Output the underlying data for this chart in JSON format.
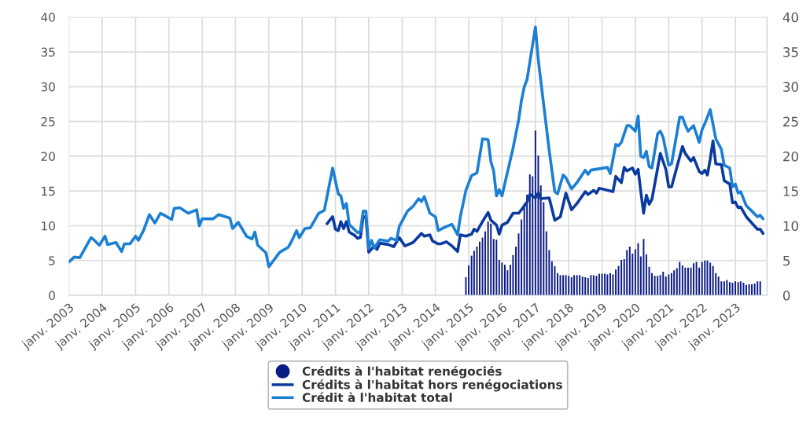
{
  "chart_data": {
    "type": "line",
    "xlim": [
      "2003-01",
      "2023-12-15"
    ],
    "xticks": [
      {
        "value": "2003-01",
        "label": "janv. 2003"
      },
      {
        "value": "2004-01",
        "label": "janv. 2004"
      },
      {
        "value": "2005-01",
        "label": "janv. 2005"
      },
      {
        "value": "2006-01",
        "label": "janv. 2006"
      },
      {
        "value": "2007-01",
        "label": "janv. 2007"
      },
      {
        "value": "2008-01",
        "label": "janv. 2008"
      },
      {
        "value": "2009-01",
        "label": "janv. 2009"
      },
      {
        "value": "2010-01",
        "label": "janv. 2010"
      },
      {
        "value": "2011-01",
        "label": "janv. 2011"
      },
      {
        "value": "2012-01",
        "label": "janv. 2012"
      },
      {
        "value": "2013-01",
        "label": "janv. 2013"
      },
      {
        "value": "2014-01",
        "label": "janv. 2014"
      },
      {
        "value": "2015-01",
        "label": "janv. 2015"
      },
      {
        "value": "2016-01",
        "label": "janv. 2016"
      },
      {
        "value": "2017-01",
        "label": "janv. 2017"
      },
      {
        "value": "2018-01",
        "label": "janv. 2018"
      },
      {
        "value": "2019-01",
        "label": "janv. 2019"
      },
      {
        "value": "2020-01",
        "label": "janv. 2020"
      },
      {
        "value": "2021-01",
        "label": "janv. 2021"
      },
      {
        "value": "2022-01",
        "label": "janv. 2022"
      },
      {
        "value": "2023-01",
        "label": "janv. 2023"
      }
    ],
    "ylim": [
      0,
      40
    ],
    "yticks": [
      0,
      5,
      10,
      15,
      20,
      25,
      30,
      35,
      40
    ],
    "y2lim": [
      0,
      40
    ],
    "y2ticks": [
      0,
      5,
      10,
      15,
      20,
      25,
      30,
      35,
      40
    ],
    "grid": true,
    "legend": "bottom",
    "series": [
      {
        "name": "Crédits à l'habitat renégociés",
        "type": "bar",
        "color": "#0c1c85",
        "x": [
          "2014-12",
          "2015-01",
          "2015-02",
          "2015-03",
          "2015-04",
          "2015-05",
          "2015-06",
          "2015-07",
          "2015-08",
          "2015-09",
          "2015-10",
          "2015-11",
          "2015-12",
          "2016-01",
          "2016-02",
          "2016-03",
          "2016-04",
          "2016-05",
          "2016-06",
          "2016-07",
          "2016-08",
          "2016-09",
          "2016-10",
          "2016-11",
          "2016-12",
          "2017-01",
          "2017-02",
          "2017-03",
          "2017-04",
          "2017-05",
          "2017-06",
          "2017-07",
          "2017-08",
          "2017-09",
          "2017-10",
          "2017-11",
          "2017-12",
          "2018-01",
          "2018-02",
          "2018-03",
          "2018-04",
          "2018-05",
          "2018-06",
          "2018-07",
          "2018-08",
          "2018-09",
          "2018-10",
          "2018-11",
          "2018-12",
          "2019-01",
          "2019-02",
          "2019-03",
          "2019-04",
          "2019-05",
          "2019-06",
          "2019-07",
          "2019-08",
          "2019-09",
          "2019-10",
          "2019-11",
          "2019-12",
          "2020-01",
          "2020-02",
          "2020-03",
          "2020-04",
          "2020-05",
          "2020-06",
          "2020-07",
          "2020-08",
          "2020-09",
          "2020-10",
          "2020-11",
          "2020-12",
          "2021-01",
          "2021-02",
          "2021-03",
          "2021-04",
          "2021-05",
          "2021-06",
          "2021-07",
          "2021-08",
          "2021-09",
          "2021-10",
          "2021-11",
          "2021-12",
          "2022-01",
          "2022-02",
          "2022-03",
          "2022-04",
          "2022-05",
          "2022-06",
          "2022-07",
          "2022-08",
          "2022-09",
          "2022-10",
          "2022-11",
          "2022-12",
          "2023-01",
          "2023-02",
          "2023-03",
          "2023-04",
          "2023-05",
          "2023-06",
          "2023-07",
          "2023-08",
          "2023-09",
          "2023-10"
        ],
        "values": [
          2.6,
          4.3,
          5.7,
          6.4,
          7.0,
          7.7,
          8.3,
          9.2,
          10.6,
          10.3,
          8.1,
          8.0,
          5.1,
          4.7,
          4.4,
          3.6,
          4.4,
          5.8,
          7.0,
          8.9,
          10.9,
          13.2,
          14.5,
          17.4,
          17.1,
          23.7,
          20.1,
          15.8,
          13.4,
          9.2,
          6.5,
          4.9,
          4.2,
          3.2,
          2.9,
          2.9,
          2.9,
          2.8,
          2.6,
          2.9,
          2.9,
          2.9,
          2.7,
          2.6,
          2.5,
          2.9,
          2.9,
          2.8,
          3.1,
          3.1,
          3.1,
          3.0,
          3.2,
          3.0,
          3.7,
          4.2,
          5.1,
          5.2,
          6.5,
          7.0,
          6.0,
          6.6,
          7.5,
          5.6,
          8.1,
          5.9,
          4.1,
          3.2,
          2.8,
          2.8,
          2.9,
          3.4,
          2.7,
          3.0,
          3.2,
          3.6,
          3.9,
          4.8,
          4.3,
          4.0,
          4.0,
          4.0,
          4.6,
          4.8,
          4.0,
          4.8,
          5.0,
          5.0,
          4.7,
          4.2,
          3.2,
          2.7,
          2.0,
          2.0,
          2.2,
          1.9,
          1.8,
          2.0,
          1.9,
          2.0,
          1.8,
          1.5,
          1.6,
          1.6,
          1.7,
          2.0,
          2.0
        ]
      },
      {
        "name": "Crédits à l'habitat hors renégociations",
        "color": "#0b3a9e",
        "x": [
          "2010-10",
          "2010-12",
          "2011-01",
          "2011-02",
          "2011-03",
          "2011-04",
          "2011-05",
          "2011-06",
          "2011-08",
          "2011-09",
          "2011-10",
          "2011-11",
          "2011-12",
          "2012-01",
          "2012-03",
          "2012-04",
          "2012-05",
          "2012-08",
          "2012-10",
          "2012-12",
          "2013-02",
          "2013-05",
          "2013-08",
          "2013-09",
          "2013-11",
          "2013-12",
          "2014-02",
          "2014-03",
          "2014-05",
          "2014-07",
          "2014-09",
          "2014-10",
          "2014-12",
          "2015-02",
          "2015-03",
          "2015-04",
          "2015-06",
          "2015-08",
          "2015-09",
          "2015-11",
          "2015-12",
          "2016-01",
          "2016-03",
          "2016-05",
          "2016-07",
          "2016-08",
          "2016-10",
          "2016-11",
          "2017-01",
          "2017-02",
          "2017-03",
          "2017-06",
          "2017-08",
          "2017-10",
          "2017-12",
          "2018-02",
          "2018-04",
          "2018-07",
          "2018-08",
          "2018-10",
          "2018-11",
          "2018-12",
          "2019-05",
          "2019-06",
          "2019-08",
          "2019-09",
          "2019-10",
          "2019-12",
          "2020-01",
          "2020-02",
          "2020-03",
          "2020-04",
          "2020-05",
          "2020-06",
          "2020-07",
          "2020-10",
          "2020-12",
          "2021-01",
          "2021-02",
          "2021-06",
          "2021-07",
          "2021-09",
          "2021-10",
          "2021-12",
          "2022-01",
          "2022-02",
          "2022-03",
          "2022-04",
          "2022-05",
          "2022-06",
          "2022-08",
          "2022-09",
          "2022-11",
          "2022-12",
          "2023-01",
          "2023-02",
          "2023-03",
          "2023-05",
          "2023-07",
          "2023-09",
          "2023-10",
          "2023-11"
        ],
        "values": [
          10.3,
          11.3,
          9.5,
          9.3,
          10.6,
          9.6,
          10.6,
          9.1,
          8.6,
          8.2,
          8.3,
          11.3,
          11.3,
          6.2,
          7.1,
          6.6,
          7.5,
          7.3,
          7.0,
          8.3,
          7.1,
          7.6,
          8.9,
          8.5,
          8.7,
          7.8,
          7.4,
          7.4,
          7.7,
          7.1,
          6.3,
          8.7,
          8.5,
          8.8,
          9.5,
          9.2,
          10.6,
          11.9,
          10.8,
          10.1,
          8.8,
          10.1,
          10.5,
          11.8,
          11.8,
          12.3,
          13.4,
          14.5,
          14.0,
          14.7,
          13.9,
          14.0,
          10.8,
          11.3,
          14.7,
          12.3,
          13.2,
          14.9,
          14.5,
          15.1,
          14.7,
          15.4,
          14.9,
          17.1,
          16.2,
          18.4,
          17.9,
          18.3,
          17.4,
          18.1,
          14.9,
          11.8,
          14.4,
          13.1,
          13.8,
          20.4,
          18.1,
          15.6,
          15.6,
          21.4,
          20.4,
          19.3,
          19.8,
          17.8,
          17.5,
          18.0,
          17.3,
          19.6,
          22.2,
          18.9,
          18.8,
          16.5,
          16.0,
          13.3,
          13.4,
          12.6,
          12.7,
          11.3,
          10.4,
          9.5,
          9.5,
          8.9
        ]
      },
      {
        "name": "Crédit à l'habitat total",
        "color": "#1b7fd3",
        "x": [
          "2003-01",
          "2003-03",
          "2003-05",
          "2003-09",
          "2003-10",
          "2003-12",
          "2004-02",
          "2004-03",
          "2004-06",
          "2004-08",
          "2004-09",
          "2004-11",
          "2005-01",
          "2005-02",
          "2005-04",
          "2005-06",
          "2005-08",
          "2005-10",
          "2005-11",
          "2006-02",
          "2006-03",
          "2006-05",
          "2006-08",
          "2006-11",
          "2006-12",
          "2007-01",
          "2007-05",
          "2007-07",
          "2007-11",
          "2007-12",
          "2008-02",
          "2008-05",
          "2008-07",
          "2008-08",
          "2008-09",
          "2008-12",
          "2009-01",
          "2009-05",
          "2009-08",
          "2009-09",
          "2009-11",
          "2009-12",
          "2010-02",
          "2010-04",
          "2010-07",
          "2010-09",
          "2010-12",
          "2011-02",
          "2011-03",
          "2011-04",
          "2011-05",
          "2011-06",
          "2011-09",
          "2011-10",
          "2011-11",
          "2011-12",
          "2012-01",
          "2012-02",
          "2012-03",
          "2012-05",
          "2012-08",
          "2012-09",
          "2012-11",
          "2012-12",
          "2013-03",
          "2013-05",
          "2013-07",
          "2013-08",
          "2013-09",
          "2013-11",
          "2014-01",
          "2014-02",
          "2014-03",
          "2014-05",
          "2014-07",
          "2014-09",
          "2014-10",
          "2014-12",
          "2015-02",
          "2015-04",
          "2015-06",
          "2015-08",
          "2015-09",
          "2015-10",
          "2015-11",
          "2015-12",
          "2016-01",
          "2016-05",
          "2016-07",
          "2016-08",
          "2016-09",
          "2016-10",
          "2017-01",
          "2017-02",
          "2017-06",
          "2017-08",
          "2017-09",
          "2017-11",
          "2017-12",
          "2018-02",
          "2018-04",
          "2018-07",
          "2018-08",
          "2018-09",
          "2018-12",
          "2019-03",
          "2019-04",
          "2019-06",
          "2019-07",
          "2019-08",
          "2019-10",
          "2019-11",
          "2020-01",
          "2020-02",
          "2020-03",
          "2020-04",
          "2020-05",
          "2020-06",
          "2020-07",
          "2020-09",
          "2020-10",
          "2020-11",
          "2021-01",
          "2021-02",
          "2021-05",
          "2021-06",
          "2021-07",
          "2021-08",
          "2021-10",
          "2021-12",
          "2022-01",
          "2022-02",
          "2022-04",
          "2022-06",
          "2022-08",
          "2022-09",
          "2022-11",
          "2022-12",
          "2023-01",
          "2023-02",
          "2023-03",
          "2023-05",
          "2023-07",
          "2023-09",
          "2023-10",
          "2023-11"
        ],
        "values": [
          4.8,
          5.5,
          5.4,
          8.3,
          8.0,
          7.2,
          8.5,
          7.3,
          7.6,
          6.3,
          7.4,
          7.4,
          8.5,
          7.9,
          9.4,
          11.6,
          10.4,
          11.8,
          11.6,
          10.9,
          12.5,
          12.6,
          11.8,
          12.3,
          10.0,
          11.0,
          11.0,
          11.6,
          11.1,
          9.6,
          10.5,
          8.5,
          8.1,
          9.1,
          7.2,
          6.1,
          4.1,
          6.2,
          6.9,
          7.6,
          9.3,
          8.3,
          9.6,
          9.7,
          11.8,
          12.2,
          18.3,
          14.6,
          14.3,
          12.5,
          13.2,
          10.2,
          9.0,
          9.2,
          12.1,
          12.1,
          6.7,
          7.9,
          6.8,
          8.0,
          7.8,
          8.2,
          7.9,
          9.9,
          12.1,
          12.8,
          13.9,
          13.5,
          14.2,
          11.8,
          11.3,
          9.3,
          9.5,
          9.9,
          10.2,
          8.7,
          11.3,
          15.1,
          17.2,
          17.6,
          22.5,
          22.4,
          19.2,
          17.9,
          14.3,
          15.2,
          14.3,
          21.2,
          25.2,
          28.0,
          30.0,
          31.0,
          38.6,
          33.9,
          20.8,
          14.9,
          14.6,
          17.3,
          16.9,
          15.3,
          16.2,
          18.0,
          17.4,
          18.0,
          18.2,
          18.4,
          17.5,
          21.7,
          21.5,
          22.0,
          24.4,
          24.4,
          23.6,
          25.8,
          20.0,
          19.8,
          20.7,
          18.5,
          18.3,
          23.2,
          23.6,
          22.7,
          18.7,
          18.9,
          25.6,
          25.6,
          24.5,
          23.6,
          24.4,
          22.0,
          23.8,
          24.7,
          26.7,
          22.5,
          21.0,
          18.7,
          18.3,
          15.6,
          16.0,
          14.7,
          14.9,
          12.9,
          12.1,
          11.3,
          11.5,
          11.0
        ]
      }
    ]
  }
}
